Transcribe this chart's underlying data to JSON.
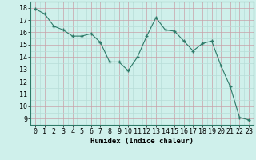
{
  "x": [
    0,
    1,
    2,
    3,
    4,
    5,
    6,
    7,
    8,
    9,
    10,
    11,
    12,
    13,
    14,
    15,
    16,
    17,
    18,
    19,
    20,
    21,
    22,
    23
  ],
  "y": [
    17.9,
    17.5,
    16.5,
    16.2,
    15.7,
    15.7,
    15.9,
    15.2,
    13.6,
    13.6,
    12.9,
    14.0,
    15.7,
    17.2,
    16.2,
    16.1,
    15.3,
    14.5,
    15.1,
    15.3,
    13.3,
    11.6,
    9.1,
    8.9
  ],
  "line_color": "#2d7a68",
  "marker_color": "#2d7a68",
  "bg_color": "#cff0eb",
  "grid_major_color": "#c8a0a8",
  "grid_minor_color": "#b8ddd8",
  "xlabel": "Humidex (Indice chaleur)",
  "ylim": [
    8.5,
    18.5
  ],
  "xlim": [
    -0.5,
    23.5
  ],
  "yticks": [
    9,
    10,
    11,
    12,
    13,
    14,
    15,
    16,
    17,
    18
  ],
  "xticks": [
    0,
    1,
    2,
    3,
    4,
    5,
    6,
    7,
    8,
    9,
    10,
    11,
    12,
    13,
    14,
    15,
    16,
    17,
    18,
    19,
    20,
    21,
    22,
    23
  ],
  "xlabel_fontsize": 6.5,
  "tick_fontsize": 6,
  "spine_color": "#2d7a68"
}
